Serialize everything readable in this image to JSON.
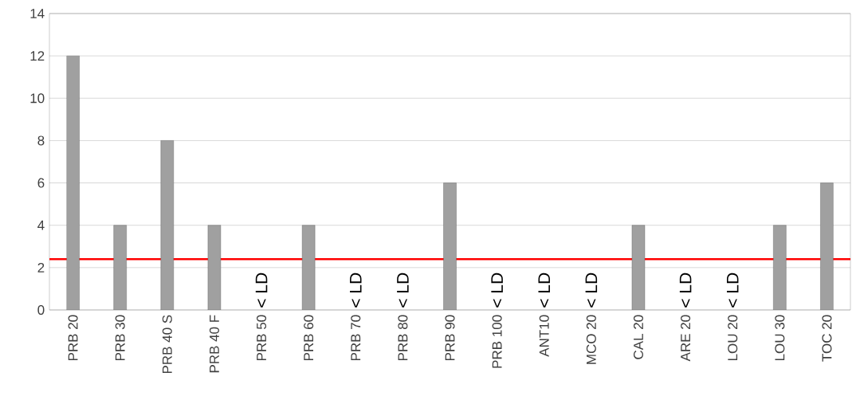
{
  "chart_data": {
    "type": "bar",
    "categories": [
      "PRB 20",
      "PRB 30",
      "PRB 40  S",
      "PRB 40 F",
      "PRB 50",
      "PRB 60",
      "PRB 70",
      "PRB 80",
      "PRB 90",
      "PRB 100",
      "ANT10",
      "MCO 20",
      "CAL 20",
      "ARE 20",
      "LOU 20",
      "LOU 30",
      "TOC 20"
    ],
    "values": [
      12,
      4,
      8,
      4,
      null,
      4,
      null,
      null,
      6,
      null,
      null,
      null,
      4,
      null,
      null,
      4,
      6
    ],
    "value_labels": [
      null,
      null,
      null,
      null,
      "< LD",
      null,
      "< LD",
      "< LD",
      null,
      "< LD",
      "< LD",
      "< LD",
      null,
      "< LD",
      "< LD",
      null,
      null
    ],
    "color": "#a0a0a0",
    "ylim": [
      0,
      14
    ],
    "yticks": [
      0,
      2,
      4,
      6,
      8,
      10,
      12,
      14
    ],
    "grid": "y",
    "ref_lines": [
      {
        "axis": "y",
        "value": 2.4,
        "color": "#ff0000"
      }
    ]
  }
}
